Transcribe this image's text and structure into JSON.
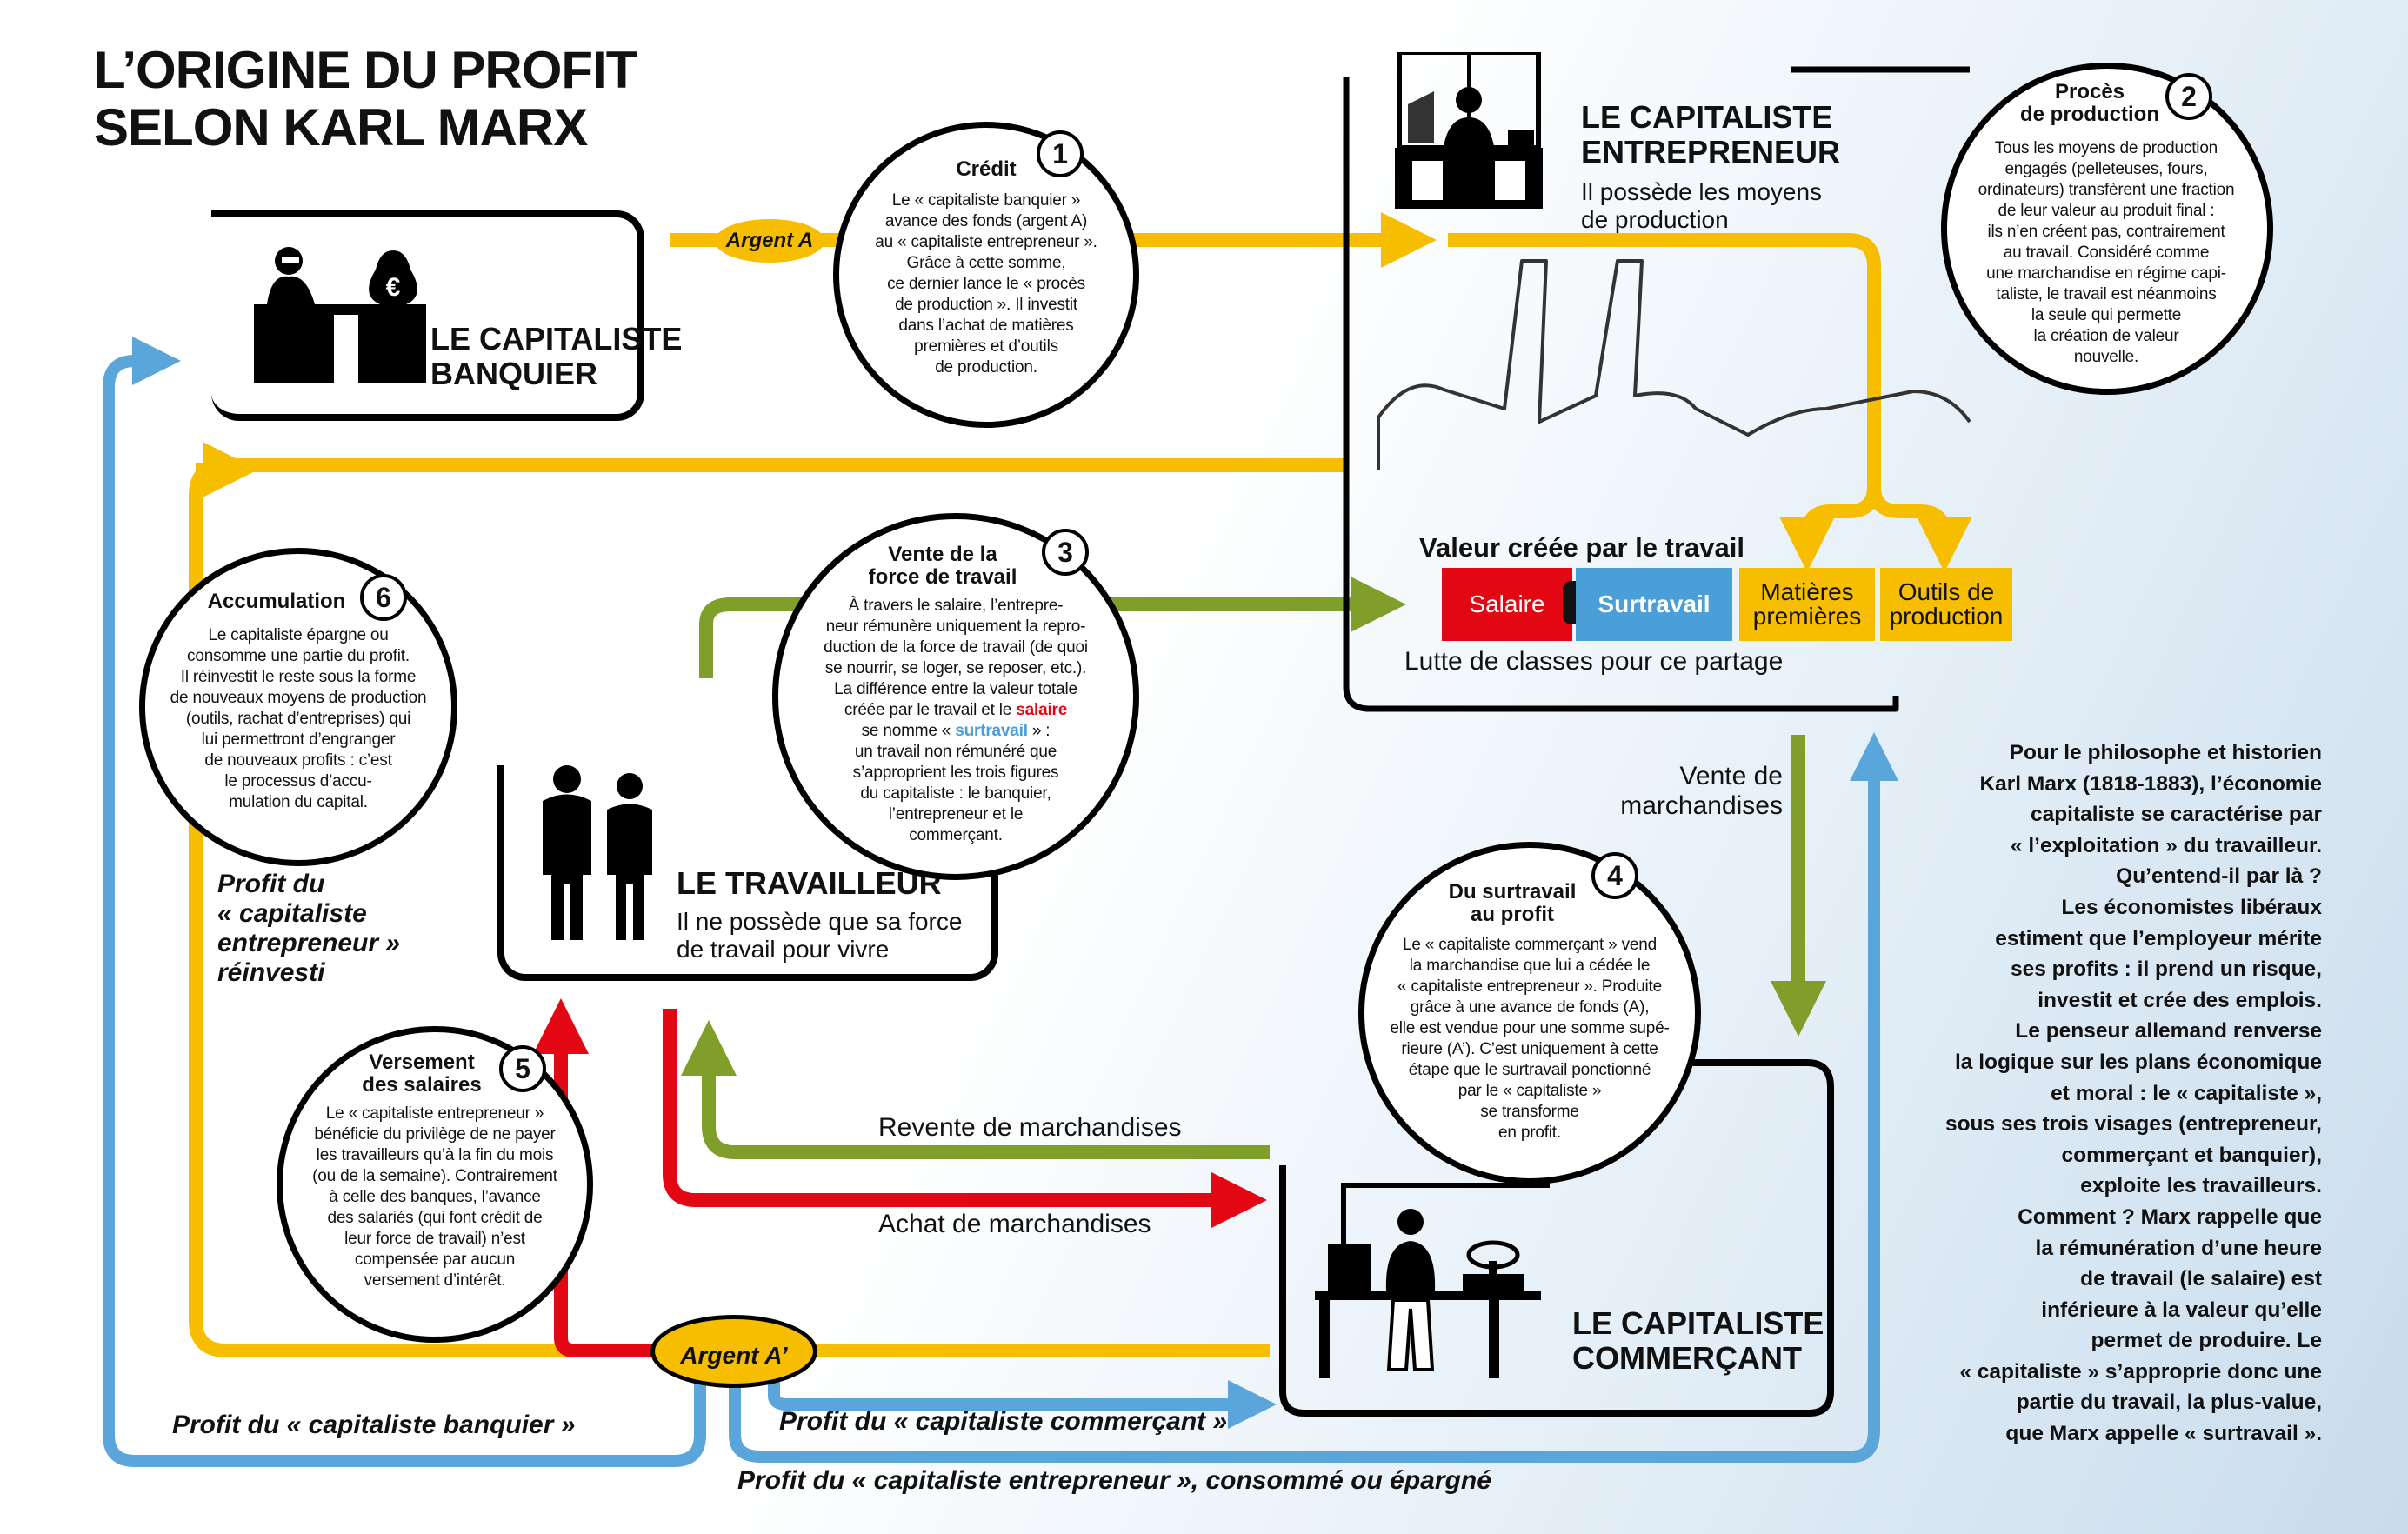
{
  "title": {
    "line1": "L’ORIGINE DU PROFIT",
    "line2": "SELON KARL MARX"
  },
  "colors": {
    "yellow": "#f7be00",
    "blue": "#5aa6db",
    "green": "#7f9f2a",
    "red": "#e30613",
    "black": "#000000"
  },
  "actors": {
    "banquier": {
      "title_line1": "LE CAPITALISTE",
      "title_line2": "BANQUIER",
      "icon": "banker-with-money-bag-icon",
      "bag_symbol": "€"
    },
    "entrepreneur": {
      "title_line1": "LE CAPITALISTE",
      "title_line2": "ENTREPRENEUR",
      "sub_line1": "Il possède les moyens",
      "sub_line2": "de production",
      "icon": "factory-owner-desk-icon"
    },
    "travailleur": {
      "title": "LE TRAVAILLEUR",
      "sub_line1": "Il ne possède que sa force",
      "sub_line2": "de travail pour vivre",
      "icon": "workers-icon"
    },
    "commercant": {
      "title_line1": "LE CAPITALISTE",
      "title_line2": "COMMERÇANT",
      "icon": "shopkeeper-icon"
    }
  },
  "steps": [
    {
      "num": "1",
      "title_line1": "Crédit",
      "title_line2": "",
      "lines": [
        "Le « capitaliste banquier »",
        "avance des fonds (argent A)",
        "au « capitaliste entrepreneur ».",
        "Grâce à cette somme,",
        "ce dernier lance le « procès",
        "de production ». Il investit",
        "dans l’achat de matières",
        "premières et d’outils",
        "de production."
      ]
    },
    {
      "num": "2",
      "title_line1": "Procès",
      "title_line2": "de production",
      "lines": [
        "Tous les moyens de production",
        "engagés (pelleteuses, fours,",
        "ordinateurs) transfèrent une fraction",
        "de leur valeur au produit final :",
        "ils n’en créent pas, contrairement",
        "au travail. Considéré comme",
        "une marchandise en régime capi-",
        "taliste, le travail est néanmoins",
        "la seule qui permette",
        "la création de valeur",
        "nouvelle."
      ]
    },
    {
      "num": "3",
      "title_line1": "Vente de la",
      "title_line2": "force de travail",
      "lines": [
        "À travers le salaire, l’entrepre-",
        "neur rémunère uniquement la repro-",
        "duction de la force de travail (de quoi",
        "se nourrir, se loger, se reposer, etc.).",
        "La différence entre la valeur totale"
      ],
      "line_salaire_pre": "créée par le travail et le ",
      "line_salaire_word": "salaire",
      "line_surtravail_pre": "se nomme « ",
      "line_surtravail_word": "surtravail",
      "line_surtravail_post": " » :",
      "lines_after": [
        "un travail non rémunéré que",
        "s’approprient  les trois figures",
        "du capitaliste : le banquier,",
        "l’entrepreneur et le",
        "commerçant."
      ]
    },
    {
      "num": "4",
      "title_line1": "Du surtravail",
      "title_line2": "au profit",
      "lines": [
        "Le « capitaliste commerçant » vend",
        "la marchandise que lui a cédée le",
        "« capitaliste entrepreneur ». Produite",
        "grâce à une avance de fonds (A),",
        "elle est vendue pour une somme supé-",
        "rieure (A’). C’est uniquement à cette",
        "étape que le surtravail ponctionné",
        "par le « capitaliste »",
        "se transforme",
        "en profit."
      ]
    },
    {
      "num": "5",
      "title_line1": "Versement",
      "title_line2": "des salaires",
      "lines": [
        "Le « capitaliste entrepreneur »",
        "bénéficie du privilège de ne payer",
        "les travailleurs qu’à la fin du mois",
        "(ou de la semaine). Contrairement",
        "à celle des banques, l’avance",
        "des salariés (qui font crédit de",
        "leur force de travail) n’est",
        "compensée par aucun",
        "versement d’intérêt."
      ]
    },
    {
      "num": "6",
      "title_line1": "Accumulation",
      "title_line2": "",
      "lines": [
        "Le capitaliste épargne ou",
        "consomme une partie du profit.",
        "Il réinvestit le reste sous la forme",
        "de nouveaux moyens de production",
        "(outils, rachat d’entreprises) qui",
        "lui permettront d’engranger",
        "de nouveaux profits : c’est",
        "le processus d’accu-",
        "mulation du capital."
      ]
    }
  ],
  "value_block": {
    "title": "Valeur créée par le travail",
    "salaire": "Salaire",
    "surtravail": "Surtravail",
    "matieres_line1": "Matières",
    "matieres_line2": "premières",
    "outils_line1": "Outils de",
    "outils_line2": "production",
    "footer": "Lutte de classes pour ce partage"
  },
  "flows": {
    "argent_a": "Argent A",
    "argent_a_prime": "Argent A’",
    "vente_line1": "Vente de",
    "vente_line2": "marchandises",
    "revente": "Revente de marchandises",
    "achat": "Achat de marchandises",
    "profit_entrepreneur_reinvesti_line1": "Profit du",
    "profit_entrepreneur_reinvesti_line2": "« capitaliste",
    "profit_entrepreneur_reinvesti_line3": "entrepreneur »",
    "profit_entrepreneur_reinvesti_line4": "réinvesti",
    "profit_banquier": "Profit du « capitaliste banquier »",
    "profit_commercant": "Profit du « capitaliste commerçant »",
    "profit_entrepreneur_consomme": "Profit du « capitaliste entrepreneur », consommé ou épargné"
  },
  "intro_lines": [
    "Pour le philosophe et historien",
    "Karl Marx (1818-1883), l’économie",
    "capitaliste se caractérise par",
    "« l’exploitation » du travailleur.",
    "Qu’entend-il par là ?",
    "Les économistes libéraux",
    "estiment que l’employeur mérite",
    "ses profits : il prend un risque,",
    "investit et crée des emplois.",
    "Le penseur allemand renverse",
    "la logique sur les plans économique",
    "et moral : le « capitaliste »,",
    "sous ses trois visages (entrepreneur,",
    "commerçant et banquier),",
    "exploite les travailleurs.",
    "Comment ? Marx rappelle que",
    "la rémunération d’une heure",
    "de travail (le salaire) est",
    "inférieure à la valeur qu’elle",
    "permet de produire. Le",
    "« capitaliste » s’approprie donc une",
    "partie du travail, la plus-value,",
    "que Marx appelle « surtravail »."
  ]
}
